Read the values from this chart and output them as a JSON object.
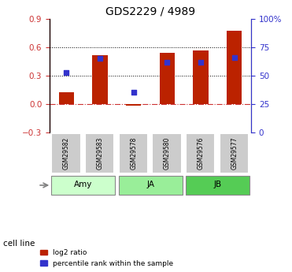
{
  "title": "GDS2229 / 4989",
  "samples": [
    "GSM29582",
    "GSM29583",
    "GSM29578",
    "GSM29580",
    "GSM29576",
    "GSM29577"
  ],
  "cell_lines": [
    {
      "label": "Amy",
      "color": "#ccffcc",
      "samples": [
        0,
        1
      ]
    },
    {
      "label": "JA",
      "color": "#99ee99",
      "samples": [
        2,
        3
      ]
    },
    {
      "label": "JB",
      "color": "#55cc55",
      "samples": [
        4,
        5
      ]
    }
  ],
  "log2_ratio": [
    0.12,
    0.52,
    -0.02,
    0.54,
    0.57,
    0.78
  ],
  "percentile_rank": [
    0.53,
    0.65,
    0.35,
    0.62,
    0.62,
    0.66
  ],
  "left_ylim": [
    -0.3,
    0.9
  ],
  "right_ylim": [
    0,
    100
  ],
  "left_yticks": [
    -0.3,
    0,
    0.3,
    0.6,
    0.9
  ],
  "right_yticks": [
    0,
    25,
    50,
    75,
    100
  ],
  "right_yticklabels": [
    "0",
    "25",
    "50",
    "75",
    "100%"
  ],
  "bar_color": "#bb2200",
  "dot_color": "#3333cc",
  "hline_color": "#cc3333",
  "grid_color": "#000000",
  "sample_box_color": "#cccccc",
  "legend_items": [
    "log2 ratio",
    "percentile rank within the sample"
  ],
  "cell_line_label": "cell line"
}
